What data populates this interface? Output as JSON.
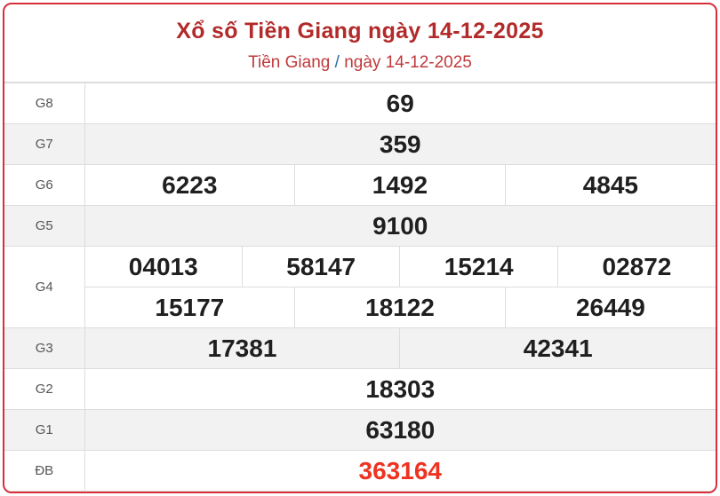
{
  "header": {
    "title": "Xổ số Tiền Giang ngày 14-12-2025",
    "breadcrumb_province": "Tiền Giang",
    "breadcrumb_sep": "/",
    "breadcrumb_date": "ngày 14-12-2025"
  },
  "prizes": {
    "g8": {
      "label": "G8",
      "numbers": [
        "69"
      ]
    },
    "g7": {
      "label": "G7",
      "numbers": [
        "359"
      ]
    },
    "g6": {
      "label": "G6",
      "numbers": [
        "6223",
        "1492",
        "4845"
      ]
    },
    "g5": {
      "label": "G5",
      "numbers": [
        "9100"
      ]
    },
    "g4": {
      "label": "G4",
      "numbers": [
        "04013",
        "58147",
        "15214",
        "02872",
        "15177",
        "18122",
        "26449"
      ]
    },
    "g3": {
      "label": "G3",
      "numbers": [
        "17381",
        "42341"
      ]
    },
    "g2": {
      "label": "G2",
      "numbers": [
        "18303"
      ]
    },
    "g1": {
      "label": "G1",
      "numbers": [
        "63180"
      ]
    },
    "db": {
      "label": "ĐB",
      "numbers": [
        "363164"
      ]
    }
  },
  "colors": {
    "title": "#b22a2a",
    "border": "#d8303a",
    "special_prize": "#ee3322"
  }
}
